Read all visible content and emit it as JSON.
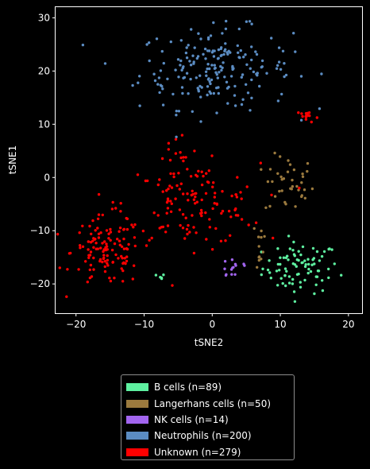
{
  "chart_data": {
    "type": "scatter",
    "title": "",
    "xlabel": "tSNE2",
    "ylabel": "tSNE1",
    "xlim": [
      -23,
      22
    ],
    "ylim": [
      -25.5,
      32
    ],
    "xticks": [
      -20,
      -10,
      0,
      10,
      20
    ],
    "yticks": [
      -20,
      -10,
      0,
      10,
      20,
      30
    ],
    "grid": false,
    "legend_position": "below plot",
    "series": [
      {
        "name": "B cells (n=89)",
        "color": "#5ef0a0",
        "clusters": [
          {
            "cx": 13.0,
            "cy": -17.0,
            "sx": 2.8,
            "sy": 2.4,
            "n": 84
          },
          {
            "cx": -8.5,
            "cy": -18.8,
            "sx": 0.9,
            "sy": 0.6,
            "n": 5
          }
        ]
      },
      {
        "name": "Langerhans cells (n=50)",
        "color": "#9b7a3e",
        "clusters": [
          {
            "cx": 11.3,
            "cy": -1.5,
            "sx": 1.8,
            "sy": 2.8,
            "n": 38
          },
          {
            "cx": 6.5,
            "cy": -12.5,
            "sx": 0.9,
            "sy": 2.6,
            "n": 12
          }
        ]
      },
      {
        "name": "NK cells (n=14)",
        "color": "#a265ef",
        "clusters": [
          {
            "cx": 3.2,
            "cy": -16.8,
            "sx": 1.3,
            "sy": 1.3,
            "n": 14
          }
        ]
      },
      {
        "name": "Neutrophils (n=200)",
        "color": "#5b8cc2",
        "clusters": [
          {
            "cx": 0.5,
            "cy": 20.5,
            "sx": 5.6,
            "sy": 3.8,
            "n": 200
          }
        ]
      },
      {
        "name": "Unknown (n=279)",
        "color": "#ff0000",
        "clusters": [
          {
            "cx": -15.5,
            "cy": -14.0,
            "sx": 2.6,
            "sy": 3.3,
            "n": 120
          },
          {
            "cx": -3.0,
            "cy": -5.0,
            "sx": 5.0,
            "sy": 3.8,
            "n": 130
          },
          {
            "cx": 14.0,
            "cy": 11.5,
            "sx": 0.8,
            "sy": 0.6,
            "n": 17
          },
          {
            "cx": -5.0,
            "cy": 5.0,
            "sx": 1.4,
            "sy": 2.2,
            "n": 12
          }
        ]
      }
    ]
  }
}
